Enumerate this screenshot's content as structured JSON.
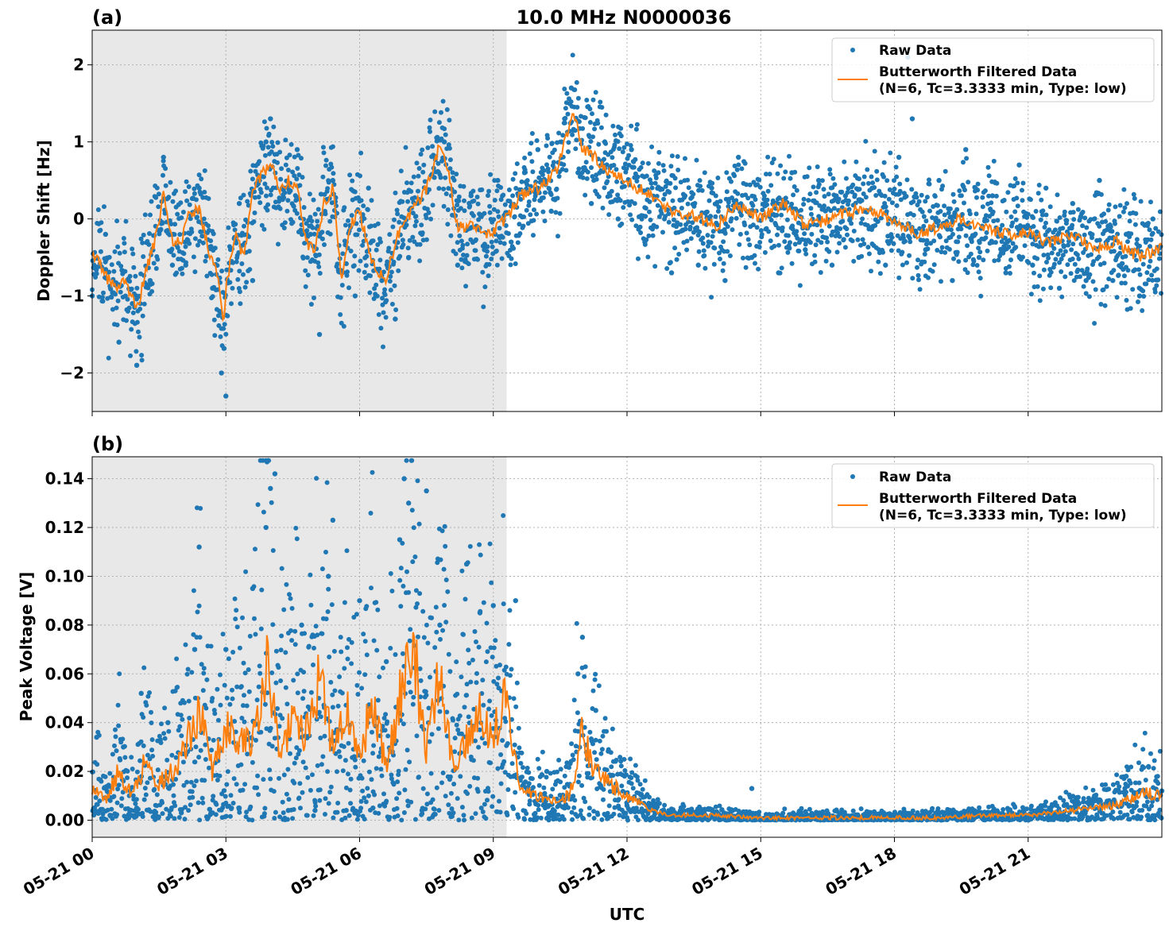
{
  "title": "10.0 MHz N0000036",
  "colors": {
    "raw": "#1f77b4",
    "filtered": "#ff7f0e",
    "shade": "#e8e8e8",
    "grid": "#b0b0b0"
  },
  "legend": {
    "raw_label": "Raw Data",
    "filtered_label_line1": "Butterworth Filtered Data",
    "filtered_label_line2": "(N=6, Tc=3.3333 min, Type: low)",
    "position": "top-right"
  },
  "xaxis": {
    "label": "UTC",
    "unit": "hours since 05-21 00:00",
    "range": [
      0,
      24
    ],
    "ticks": [
      0,
      3,
      6,
      9,
      12,
      15,
      18,
      21
    ],
    "tick_labels": [
      "05-21 00",
      "05-21 03",
      "05-21 06",
      "05-21 09",
      "05-21 12",
      "05-21 15",
      "05-21 18",
      "05-21 21"
    ]
  },
  "chart_data": [
    {
      "type": "scatter",
      "panel_label": "(a)",
      "ylabel": "Doppler Shift [Hz]",
      "ylim": [
        -2.5,
        2.45
      ],
      "yticks": [
        -2,
        -1,
        0,
        1,
        2
      ],
      "ytick_labels": [
        "−2",
        "−1",
        "0",
        "1",
        "2"
      ],
      "grid": true,
      "shaded_x_range": [
        0,
        9.3
      ],
      "series": [
        {
          "name": "Butterworth Filtered Data",
          "kind": "line",
          "x": [
            0,
            0.25,
            0.5,
            0.75,
            0.9,
            1.0,
            1.2,
            1.4,
            1.6,
            1.8,
            2.0,
            2.2,
            2.4,
            2.6,
            2.8,
            2.95,
            3.0,
            3.2,
            3.4,
            3.6,
            3.8,
            4.0,
            4.2,
            4.4,
            4.6,
            4.8,
            5.0,
            5.2,
            5.4,
            5.6,
            5.8,
            6.0,
            6.2,
            6.4,
            6.6,
            6.8,
            7.0,
            7.2,
            7.5,
            7.8,
            8.0,
            8.2,
            8.5,
            8.8,
            9.0,
            9.3,
            9.6,
            10.0,
            10.4,
            10.8,
            11.0,
            11.3,
            11.6,
            12.0,
            12.5,
            13.0,
            13.5,
            14.0,
            14.5,
            15.0,
            15.5,
            16.0,
            16.5,
            17.0,
            17.5,
            18.0,
            18.5,
            19.0,
            19.5,
            20.0,
            20.5,
            21.0,
            21.5,
            22.0,
            22.5,
            23.0,
            23.5,
            24.0
          ],
          "y": [
            -0.4,
            -0.7,
            -0.9,
            -0.8,
            -1.05,
            -1.2,
            -0.7,
            -0.3,
            0.3,
            -0.3,
            -0.3,
            0.1,
            0.1,
            -0.4,
            -0.7,
            -1.3,
            -0.9,
            -0.2,
            -0.5,
            0.3,
            0.6,
            0.7,
            0.4,
            0.5,
            0.4,
            -0.3,
            -0.4,
            0.2,
            0.4,
            -0.8,
            -0.1,
            0.1,
            -0.4,
            -0.7,
            -0.8,
            -0.3,
            0.0,
            0.1,
            0.4,
            0.95,
            0.6,
            -0.1,
            -0.1,
            -0.2,
            -0.15,
            0.0,
            0.3,
            0.4,
            0.6,
            1.4,
            0.9,
            0.8,
            0.6,
            0.5,
            0.3,
            0.1,
            0.05,
            -0.1,
            0.2,
            0.0,
            0.2,
            -0.1,
            0.0,
            0.1,
            0.1,
            0.0,
            -0.2,
            -0.1,
            0.0,
            -0.1,
            -0.2,
            -0.2,
            -0.3,
            -0.2,
            -0.4,
            -0.3,
            -0.5,
            -0.35
          ]
        },
        {
          "name": "Raw Data",
          "kind": "points",
          "x": [
            0.0,
            0.3,
            0.6,
            0.9,
            1.0,
            1.3,
            1.6,
            1.8,
            2.1,
            2.4,
            2.7,
            2.9,
            3.0,
            3.3,
            3.6,
            3.9,
            4.0,
            4.3,
            4.6,
            4.9,
            5.1,
            5.4,
            5.7,
            5.9,
            6.2,
            6.5,
            6.8,
            7.1,
            7.4,
            7.7,
            7.9,
            8.2,
            8.5,
            8.8,
            9.1,
            9.4,
            9.7,
            10.0,
            10.3,
            10.6,
            10.75,
            10.9,
            11.2,
            11.5,
            11.8,
            12.1,
            12.4,
            12.7,
            13.0,
            13.3,
            13.6,
            13.9,
            14.2,
            14.5,
            14.8,
            15.1,
            15.4,
            15.7,
            16.0,
            16.3,
            16.6,
            16.9,
            17.2,
            17.5,
            17.8,
            18.1,
            18.3,
            18.4,
            18.7,
            19.0,
            19.3,
            19.6,
            19.9,
            20.2,
            20.5,
            20.8,
            21.1,
            21.4,
            21.7,
            22.0,
            22.3,
            22.6,
            22.9,
            23.2,
            23.5,
            23.8
          ],
          "y": [
            -1.0,
            -0.2,
            -1.6,
            -1.1,
            -1.9,
            -0.8,
            0.8,
            -0.6,
            -0.6,
            0.4,
            -0.9,
            -2.0,
            -2.3,
            0.2,
            -0.8,
            1.0,
            1.3,
            0.4,
            0.9,
            -0.2,
            -1.5,
            0.5,
            -0.3,
            -1.0,
            0.4,
            -0.8,
            -1.3,
            -0.5,
            -0.2,
            0.8,
            1.0,
            -0.6,
            0.3,
            -0.4,
            0.5,
            -0.3,
            0.6,
            0.9,
            0.1,
            1.3,
            1.7,
            0.6,
            0.2,
            1.0,
            0.0,
            0.9,
            -0.3,
            0.6,
            -0.7,
            0.3,
            -0.6,
            0.4,
            -0.8,
            0.8,
            -0.5,
            0.2,
            -0.7,
            0.6,
            -0.4,
            0.5,
            -0.6,
            0.3,
            -0.5,
            0.4,
            -0.6,
            0.8,
            2.1,
            1.3,
            -0.4,
            0.5,
            -0.8,
            0.9,
            -0.5,
            0.3,
            -0.7,
            0.7,
            -0.6,
            0.4,
            -0.9,
            0.2,
            -0.8,
            0.5,
            -0.8,
            -0.2,
            -1.0,
            0.0
          ]
        }
      ]
    },
    {
      "type": "scatter",
      "panel_label": "(b)",
      "ylabel": "Peak Voltage [V]",
      "ylim": [
        -0.007,
        0.149
      ],
      "yticks": [
        0.0,
        0.02,
        0.04,
        0.06,
        0.08,
        0.1,
        0.12,
        0.14
      ],
      "ytick_labels": [
        "0.00",
        "0.02",
        "0.04",
        "0.06",
        "0.08",
        "0.10",
        "0.12",
        "0.14"
      ],
      "grid": true,
      "shaded_x_range": [
        0,
        9.3
      ],
      "series": [
        {
          "name": "Butterworth Filtered Data",
          "kind": "line",
          "x": [
            0,
            0.3,
            0.6,
            0.9,
            1.2,
            1.5,
            1.8,
            2.1,
            2.4,
            2.7,
            3.0,
            3.3,
            3.6,
            3.9,
            4.2,
            4.5,
            4.8,
            5.1,
            5.4,
            5.7,
            6.0,
            6.3,
            6.6,
            6.9,
            7.2,
            7.5,
            7.8,
            8.1,
            8.4,
            8.7,
            9.0,
            9.3,
            9.6,
            10.0,
            10.4,
            10.7,
            11.0,
            11.3,
            11.6,
            12.0,
            12.5,
            13.0,
            14.0,
            15.0,
            16.0,
            17.0,
            18.0,
            19.0,
            20.0,
            21.0,
            22.0,
            23.0,
            23.6,
            24.0
          ],
          "y": [
            0.014,
            0.008,
            0.02,
            0.01,
            0.025,
            0.015,
            0.02,
            0.03,
            0.046,
            0.02,
            0.04,
            0.03,
            0.035,
            0.065,
            0.03,
            0.04,
            0.035,
            0.06,
            0.03,
            0.045,
            0.025,
            0.05,
            0.02,
            0.05,
            0.07,
            0.03,
            0.06,
            0.02,
            0.035,
            0.045,
            0.035,
            0.05,
            0.012,
            0.01,
            0.008,
            0.01,
            0.035,
            0.02,
            0.015,
            0.01,
            0.004,
            0.002,
            0.002,
            0.001,
            0.001,
            0.001,
            0.001,
            0.001,
            0.002,
            0.002,
            0.004,
            0.006,
            0.012,
            0.01
          ]
        },
        {
          "name": "Raw Data",
          "kind": "points",
          "x": [
            0.1,
            0.4,
            0.7,
            1.0,
            1.1,
            1.4,
            1.7,
            2.0,
            2.3,
            2.4,
            2.7,
            3.0,
            3.3,
            3.6,
            3.9,
            4.0,
            4.1,
            4.4,
            4.7,
            5.0,
            5.3,
            5.4,
            5.7,
            6.0,
            6.3,
            6.6,
            6.9,
            7.0,
            7.1,
            7.4,
            7.5,
            7.8,
            8.1,
            8.4,
            8.7,
            9.0,
            9.3,
            9.5,
            9.8,
            10.2,
            10.6,
            10.9,
            11.0,
            11.3,
            11.6,
            12.0,
            12.6,
            13.2,
            14.0,
            14.8,
            15.5,
            16.5,
            17.5,
            18.5,
            19.5,
            20.5,
            21.5,
            22.5,
            23.2,
            23.7,
            24.0
          ],
          "y": [
            0.034,
            0.002,
            0.03,
            0.005,
            0.052,
            0.003,
            0.04,
            0.003,
            0.07,
            0.112,
            0.003,
            0.07,
            0.005,
            0.095,
            0.12,
            0.136,
            0.142,
            0.004,
            0.08,
            0.004,
            0.1,
            0.123,
            0.004,
            0.09,
            0.005,
            0.065,
            0.115,
            0.14,
            0.13,
            0.004,
            0.135,
            0.08,
            0.003,
            0.105,
            0.085,
            0.088,
            0.003,
            0.09,
            0.015,
            0.02,
            0.005,
            0.06,
            0.075,
            0.045,
            0.015,
            0.006,
            0.004,
            0.002,
            0.001,
            0.013,
            0.001,
            0.001,
            0.001,
            0.001,
            0.001,
            0.002,
            0.004,
            0.008,
            0.018,
            0.022,
            0.012
          ]
        }
      ]
    }
  ]
}
